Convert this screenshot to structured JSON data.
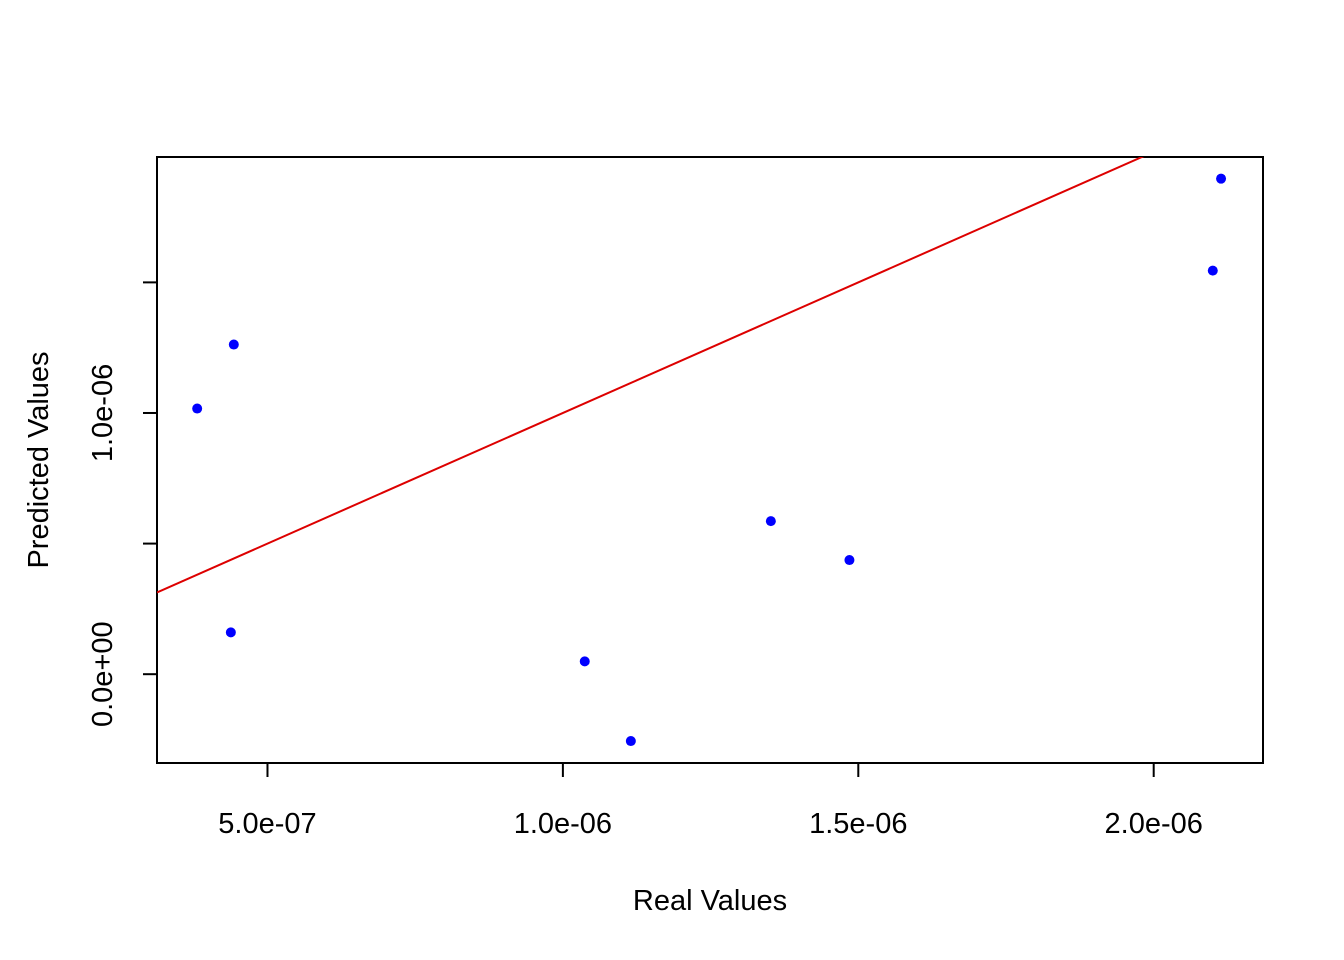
{
  "chart_data": {
    "type": "scatter",
    "title": "",
    "xlabel": "Real Values",
    "ylabel": "Predicted Values",
    "xlim": [
      3.13e-07,
      2.185e-06
    ],
    "ylim": [
      -3.4e-07,
      1.98e-06
    ],
    "x_ticks": [
      {
        "value": 5e-07,
        "label": "5.0e-07"
      },
      {
        "value": 1e-06,
        "label": "1.0e-06"
      },
      {
        "value": 1.5e-06,
        "label": "1.5e-06"
      },
      {
        "value": 2e-06,
        "label": "2.0e-06"
      }
    ],
    "y_ticks": [
      {
        "value": 0,
        "label": "0.0e+00"
      },
      {
        "value": 5e-07,
        "label": ""
      },
      {
        "value": 1e-06,
        "label": "1.0e-06"
      },
      {
        "value": 1.5e-06,
        "label": ""
      }
    ],
    "points": [
      {
        "x": 3.81e-07,
        "y": 1.017e-06
      },
      {
        "x": 4.43e-07,
        "y": 1.262e-06
      },
      {
        "x": 4.38e-07,
        "y": 1.6e-07
      },
      {
        "x": 1.037e-06,
        "y": 4.9e-08
      },
      {
        "x": 1.115e-06,
        "y": -2.56e-07
      },
      {
        "x": 1.352e-06,
        "y": 5.86e-07
      },
      {
        "x": 1.485e-06,
        "y": 4.37e-07
      },
      {
        "x": 2.1e-06,
        "y": 1.545e-06
      },
      {
        "x": 2.114e-06,
        "y": 1.897e-06
      }
    ],
    "reference_line": {
      "type": "identity",
      "intercept": 0,
      "slope": 1
    },
    "grid": false,
    "legend": "none",
    "colors": {
      "points": "#0000ff",
      "line": "#dd0000",
      "axes": "#000000"
    }
  }
}
